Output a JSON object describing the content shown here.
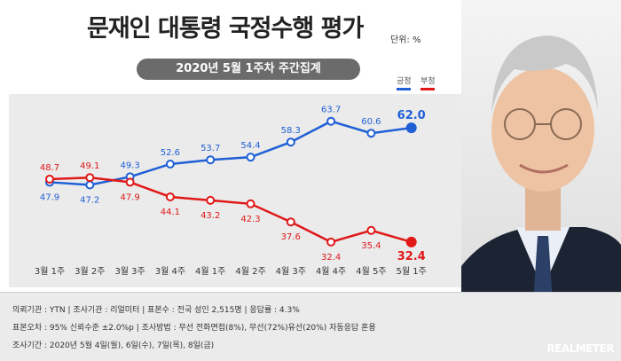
{
  "header": {
    "title": "문재인 대통령 국정수행 평가",
    "unit": "단위: %",
    "subtitle": "2020년 5월 1주차 주간집계"
  },
  "legend": {
    "approve": "긍정",
    "disapprove": "부정"
  },
  "colors": {
    "approve": "#1f5fd6",
    "disapprove": "#e01818",
    "panel": "#ebebeb",
    "subtitle_bar": "#6b6b6b"
  },
  "chart_data": {
    "type": "line",
    "categories": [
      "3월 1주",
      "3월 2주",
      "3월 3주",
      "3월 4주",
      "4월 1주",
      "4월 2주",
      "4월 3주",
      "4월 4주",
      "4월 5주",
      "5월 1주"
    ],
    "series": [
      {
        "name": "긍정",
        "values": [
          47.9,
          47.2,
          49.3,
          52.6,
          53.7,
          54.4,
          58.3,
          63.7,
          60.6,
          62.0
        ]
      },
      {
        "name": "부정",
        "values": [
          48.7,
          49.1,
          47.9,
          44.1,
          43.2,
          42.3,
          37.6,
          32.4,
          35.4,
          32.4
        ]
      }
    ],
    "ylim": [
      28,
      68
    ],
    "grid": false,
    "legend_position": "top-right"
  },
  "footer": {
    "line1": "의뢰기관 : YTN   |   조사기관 : 리얼미터   |   표본수 : 전국 성인 2,515명   |   응답률 : 4.3%",
    "line2": "표본오차 : 95% 신뢰수준 ±2.0%p   |   조사방법 : 무선 전화면접(8%), 무선(72%)유선(20%) 자동응답 혼용",
    "line3": "조사기간 : 2020년 5월 4일(월), 6일(수), 7일(목), 8일(금)",
    "brand": "REALMETER"
  }
}
